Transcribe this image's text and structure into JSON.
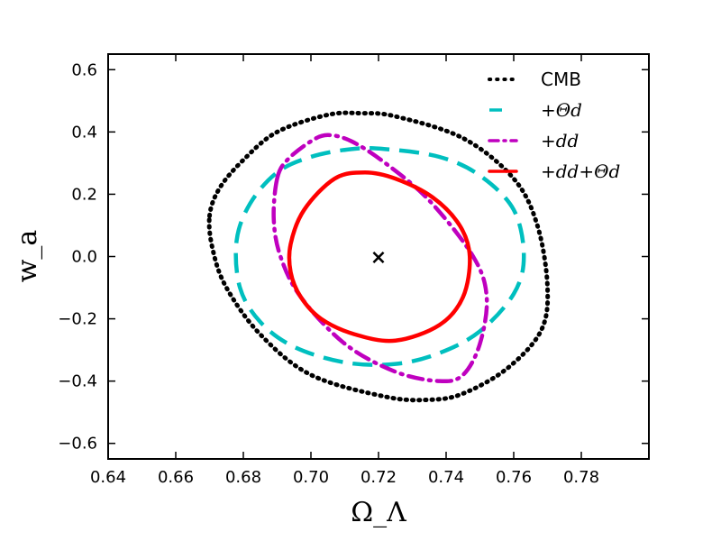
{
  "chart_data": {
    "type": "line",
    "title": "",
    "xlabel": "Ω_Λ",
    "ylabel": "w_a",
    "xlim": [
      0.64,
      0.8
    ],
    "ylim": [
      -0.65,
      0.65
    ],
    "xticks": [
      0.64,
      0.66,
      0.68,
      0.7,
      0.72,
      0.74,
      0.76,
      0.78
    ],
    "xtick_labels": [
      "0.64",
      "0.66",
      "0.68",
      "0.70",
      "0.72",
      "0.74",
      "0.76",
      "0.78"
    ],
    "yticks": [
      0.6,
      0.4,
      0.2,
      0.0,
      -0.2,
      -0.4,
      -0.6
    ],
    "ytick_labels": [
      "0.6",
      "0.4",
      "0.2",
      "0.0",
      "−0.2",
      "−0.4",
      "−0.6"
    ],
    "grid": false,
    "legend_position": "top-right",
    "fiducial_marker": {
      "x": 0.72,
      "y": 0.0,
      "symbol": "×"
    },
    "series": [
      {
        "name": "CMB",
        "label_style": "text",
        "color": "#000000",
        "dash": "dotted",
        "points": [
          [
            0.67,
            0.13
          ],
          [
            0.673,
            0.22
          ],
          [
            0.68,
            0.31
          ],
          [
            0.69,
            0.4
          ],
          [
            0.705,
            0.455
          ],
          [
            0.715,
            0.46
          ],
          [
            0.725,
            0.45
          ],
          [
            0.745,
            0.38
          ],
          [
            0.76,
            0.25
          ],
          [
            0.767,
            0.1
          ],
          [
            0.77,
            -0.1
          ],
          [
            0.768,
            -0.24
          ],
          [
            0.758,
            -0.36
          ],
          [
            0.745,
            -0.44
          ],
          [
            0.735,
            -0.46
          ],
          [
            0.722,
            -0.45
          ],
          [
            0.7,
            -0.38
          ],
          [
            0.685,
            -0.25
          ],
          [
            0.675,
            -0.1
          ],
          [
            0.671,
            0.02
          ]
        ]
      },
      {
        "name": "+Θd",
        "label_style": "math",
        "color": "#00bfbf",
        "dash": "dashed",
        "points": [
          [
            0.678,
            0.05
          ],
          [
            0.682,
            0.17
          ],
          [
            0.69,
            0.27
          ],
          [
            0.7,
            0.32
          ],
          [
            0.712,
            0.345
          ],
          [
            0.722,
            0.345
          ],
          [
            0.738,
            0.32
          ],
          [
            0.75,
            0.26
          ],
          [
            0.76,
            0.15
          ],
          [
            0.763,
            0.0
          ],
          [
            0.76,
            -0.12
          ],
          [
            0.75,
            -0.24
          ],
          [
            0.738,
            -0.31
          ],
          [
            0.725,
            -0.345
          ],
          [
            0.71,
            -0.34
          ],
          [
            0.695,
            -0.29
          ],
          [
            0.685,
            -0.21
          ],
          [
            0.679,
            -0.1
          ]
        ]
      },
      {
        "name": "+dd",
        "label_style": "math",
        "color": "#bf00bf",
        "dash": "dashdot",
        "points": [
          [
            0.69,
            0.25
          ],
          [
            0.693,
            0.31
          ],
          [
            0.7,
            0.37
          ],
          [
            0.705,
            0.39
          ],
          [
            0.712,
            0.37
          ],
          [
            0.722,
            0.3
          ],
          [
            0.735,
            0.18
          ],
          [
            0.748,
            0.0
          ],
          [
            0.752,
            -0.13
          ],
          [
            0.75,
            -0.28
          ],
          [
            0.745,
            -0.38
          ],
          [
            0.738,
            -0.4
          ],
          [
            0.725,
            -0.37
          ],
          [
            0.71,
            -0.28
          ],
          [
            0.697,
            -0.13
          ],
          [
            0.691,
            0.0
          ],
          [
            0.689,
            0.12
          ]
        ]
      },
      {
        "name": "+dd+Θd",
        "label_style": "math",
        "color": "#ff0000",
        "dash": "solid",
        "points": [
          [
            0.694,
            0.04
          ],
          [
            0.698,
            0.15
          ],
          [
            0.707,
            0.25
          ],
          [
            0.716,
            0.27
          ],
          [
            0.725,
            0.25
          ],
          [
            0.736,
            0.19
          ],
          [
            0.744,
            0.1
          ],
          [
            0.747,
            0.0
          ],
          [
            0.745,
            -0.13
          ],
          [
            0.738,
            -0.22
          ],
          [
            0.725,
            -0.27
          ],
          [
            0.713,
            -0.25
          ],
          [
            0.703,
            -0.2
          ],
          [
            0.697,
            -0.13
          ],
          [
            0.694,
            -0.05
          ]
        ]
      }
    ]
  }
}
